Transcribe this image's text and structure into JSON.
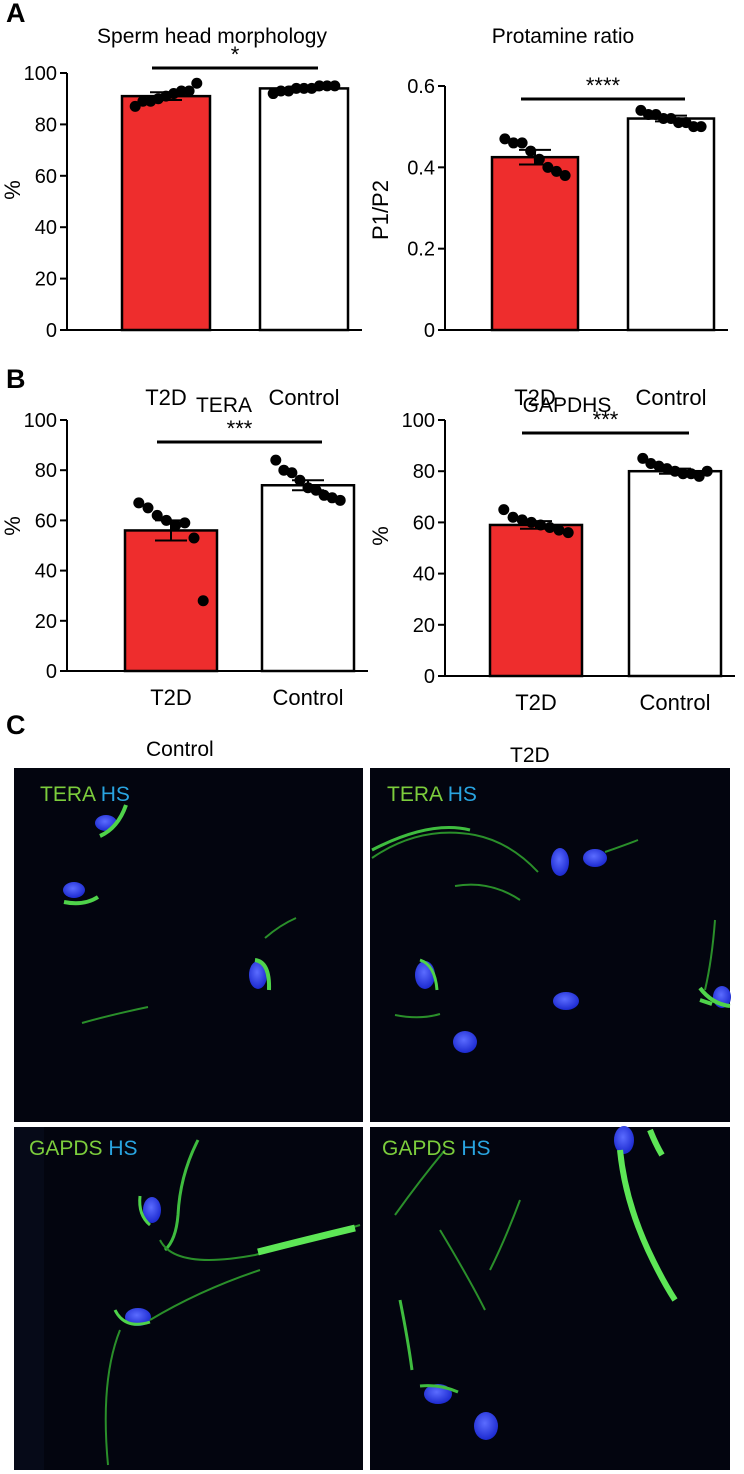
{
  "panels": {
    "a": "A",
    "b": "B",
    "c": "C"
  },
  "colors": {
    "t2d": "#ee2d2d",
    "control": "#ffffff",
    "stroke": "#000000",
    "marker_text_green": "#7ccd3c",
    "marker_text_blue": "#29a4e0"
  },
  "chart_data": [
    {
      "type": "bar",
      "title": "Sperm head morphology",
      "ylabel": "%",
      "xlabel": "",
      "categories": [
        "T2D",
        "Control"
      ],
      "values": [
        91,
        94
      ],
      "sem": [
        1.5,
        0.7
      ],
      "points": [
        [
          87,
          89,
          89,
          90,
          91,
          92,
          93,
          93,
          96
        ],
        [
          92,
          93,
          93,
          94,
          94,
          94,
          95,
          95,
          95
        ]
      ],
      "ylim": [
        0,
        100
      ],
      "yticks": [
        "0",
        "20",
        "40",
        "60",
        "80",
        "100"
      ],
      "significance": "*"
    },
    {
      "type": "bar",
      "title": "Protamine ratio",
      "ylabel": "P1/P2",
      "xlabel": "",
      "categories": [
        "T2D",
        "Control"
      ],
      "values": [
        0.425,
        0.52
      ],
      "sem": [
        0.018,
        0.007
      ],
      "points": [
        [
          0.47,
          0.46,
          0.46,
          0.44,
          0.42,
          0.4,
          0.39,
          0.38
        ],
        [
          0.54,
          0.53,
          0.53,
          0.52,
          0.52,
          0.51,
          0.51,
          0.5,
          0.5
        ]
      ],
      "ylim": [
        0,
        0.6
      ],
      "yticks": [
        "0",
        "0.2",
        "0.4",
        "0.6"
      ],
      "significance": "****"
    },
    {
      "type": "bar",
      "title": "TERA",
      "ylabel": "%",
      "xlabel": "",
      "categories": [
        "T2D",
        "Control"
      ],
      "values": [
        56,
        74
      ],
      "sem": [
        4,
        2
      ],
      "points": [
        [
          67,
          65,
          62,
          60,
          58,
          59,
          53,
          28
        ],
        [
          84,
          80,
          79,
          76,
          73,
          72,
          70,
          69,
          68
        ]
      ],
      "ylim": [
        0,
        100
      ],
      "yticks": [
        "0",
        "20",
        "40",
        "60",
        "80",
        "100"
      ],
      "significance": "***"
    },
    {
      "type": "bar",
      "title": "GAPDHS",
      "ylabel": "%",
      "xlabel": "",
      "categories": [
        "T2D",
        "Control"
      ],
      "values": [
        59,
        80
      ],
      "sem": [
        1.5,
        1
      ],
      "points": [
        [
          65,
          62,
          61,
          60,
          59,
          58,
          57,
          56
        ],
        [
          85,
          83,
          82,
          81,
          80,
          79,
          79,
          78,
          80
        ]
      ],
      "ylim": [
        0,
        100
      ],
      "yticks": [
        "0",
        "20",
        "40",
        "60",
        "80",
        "100"
      ],
      "significance": "***"
    }
  ],
  "micrographs": {
    "col_labels": [
      "Control",
      "T2D"
    ],
    "tiles": [
      {
        "marker": "TERA",
        "stain": "HS"
      },
      {
        "marker": "TERA",
        "stain": "HS"
      },
      {
        "marker": "GAPDS",
        "stain": "HS"
      },
      {
        "marker": "GAPDS",
        "stain": "HS"
      }
    ]
  }
}
